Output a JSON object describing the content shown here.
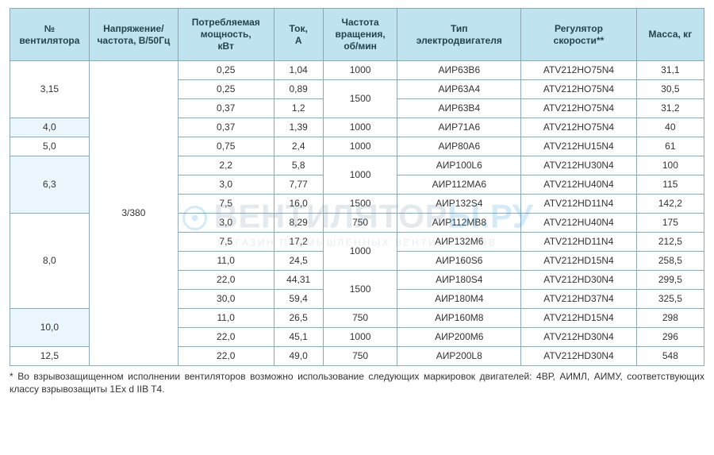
{
  "watermark": {
    "main": "ВЕНТИЛЯТОР",
    "accent": "Ы.РУ",
    "sub": "МАГАЗИН ПРОМЫШЛЕННЫХ ВЕНТИЛЯТОРОВ"
  },
  "colors": {
    "header_bg": "#bfe3ef",
    "alt_row_bg": "#eaf6fb",
    "border": "#8ca8b8",
    "text": "#333333",
    "watermark_text": "#6e8aa0",
    "watermark_accent": "#1b8ed6"
  },
  "columns": [
    "№\nвентилятора",
    "Напряжение/\nчастота, В/50Гц",
    "Потребляемая\nмощность,\nкВт",
    "Ток,\nА",
    "Частота\nвращения,\nоб/мин",
    "Тип\nэлектродвигателя",
    "Регулятор\nскорости**",
    "Масса, кг"
  ],
  "voltage_value": "3/380",
  "fan_groups": [
    {
      "fan": "3,15",
      "alt": false,
      "rows": [
        {
          "pow": "0,25",
          "cur": "1,04",
          "freq": "1000",
          "freq_span": 1,
          "motor": "АИР63В6",
          "reg": "ATV212HO75N4",
          "mass": "31,1"
        },
        {
          "pow": "0,25",
          "cur": "0,89",
          "freq": "1500",
          "freq_span": 2,
          "motor": "АИР63А4",
          "reg": "ATV212HO75N4",
          "mass": "30,5"
        },
        {
          "pow": "0,37",
          "cur": "1,2",
          "motor": "АИР63В4",
          "reg": "ATV212HO75N4",
          "mass": "31,2"
        }
      ]
    },
    {
      "fan": "4,0",
      "alt": true,
      "rows": [
        {
          "pow": "0,37",
          "cur": "1,39",
          "freq": "1000",
          "freq_span": 1,
          "motor": "АИР71А6",
          "reg": "ATV212HO75N4",
          "mass": "40"
        }
      ]
    },
    {
      "fan": "5,0",
      "alt": false,
      "rows": [
        {
          "pow": "0,75",
          "cur": "2,4",
          "freq": "1000",
          "freq_span": 1,
          "motor": "АИР80А6",
          "reg": "ATV212HU15N4",
          "mass": "61"
        }
      ]
    },
    {
      "fan": "6,3",
      "alt": true,
      "rows": [
        {
          "pow": "2,2",
          "cur": "5,8",
          "freq": "1000",
          "freq_span": 2,
          "motor": "АИР100L6",
          "reg": "ATV212HU30N4",
          "mass": "100"
        },
        {
          "pow": "3,0",
          "cur": "7,77",
          "motor": "АИР112МА6",
          "reg": "ATV212HU40N4",
          "mass": "115"
        },
        {
          "pow": "7,5",
          "cur": "16,0",
          "freq": "1500",
          "freq_span": 1,
          "motor": "АИР132S4",
          "reg": "ATV212HD11N4",
          "mass": "142,2"
        }
      ]
    },
    {
      "fan": "8,0",
      "alt": false,
      "rows": [
        {
          "pow": "3,0",
          "cur": "8,29",
          "freq": "750",
          "freq_span": 1,
          "motor": "АИР112МВ8",
          "reg": "ATV212HU40N4",
          "mass": "175"
        },
        {
          "pow": "7,5",
          "cur": "17,2",
          "freq": "1000",
          "freq_span": 2,
          "motor": "АИР132М6",
          "reg": "ATV212HD11N4",
          "mass": "212,5"
        },
        {
          "pow": "11,0",
          "cur": "24,5",
          "motor": "АИР160S6",
          "reg": "ATV212HD15N4",
          "mass": "258,5"
        },
        {
          "pow": "22,0",
          "cur": "44,31",
          "freq": "1500",
          "freq_span": 2,
          "motor": "АИР180S4",
          "reg": "ATV212HD30N4",
          "mass": "299,5"
        },
        {
          "pow": "30,0",
          "cur": "59,4",
          "motor": "АИР180М4",
          "reg": "ATV212HD37N4",
          "mass": "325,5"
        }
      ]
    },
    {
      "fan": "10,0",
      "alt": true,
      "rows": [
        {
          "pow": "11,0",
          "cur": "26,5",
          "freq": "750",
          "freq_span": 1,
          "motor": "АИР160М8",
          "reg": "ATV212HD15N4",
          "mass": "298"
        },
        {
          "pow": "22,0",
          "cur": "45,1",
          "freq": "1000",
          "freq_span": 1,
          "motor": "АИР200М6",
          "reg": "ATV212HD30N4",
          "mass": "296"
        }
      ]
    },
    {
      "fan": "12,5",
      "alt": false,
      "rows": [
        {
          "pow": "22,0",
          "cur": "49,0",
          "freq": "750",
          "freq_span": 1,
          "motor": "АИР200L8",
          "reg": "ATV212HD30N4",
          "mass": "548"
        }
      ]
    }
  ],
  "footnote": "* Во взрывозащищенном исполнении вентиляторов возможно использование следующих маркировок двигателей: 4ВР, АИМЛ, АИМУ, соответствующих классу взрывозащиты 1Ex d IIB T4."
}
